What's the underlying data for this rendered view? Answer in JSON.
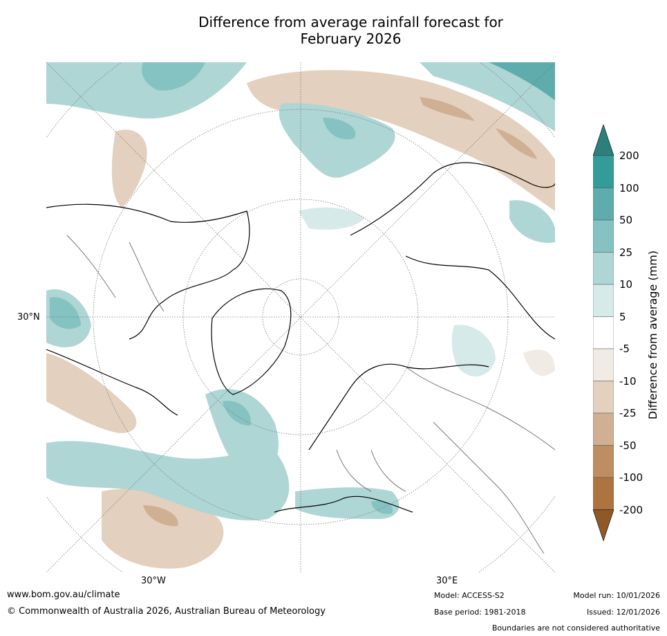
{
  "title": {
    "line1": "Difference from average rainfall forecast for",
    "line2": "February 2026"
  },
  "map": {
    "projection": "north polar stereographic",
    "lat_label": "30°N",
    "lon_labels": {
      "west": "30°W",
      "east": "30°E"
    }
  },
  "colorbar": {
    "title": "Difference from average (mm)",
    "ticks": [
      "200",
      "100",
      "50",
      "25",
      "10",
      "5",
      "-5",
      "-10",
      "-25",
      "-50",
      "-100",
      "-200"
    ],
    "colors": {
      "gt200": "#2d7f7b",
      "b100_200": "#339c98",
      "b50_100": "#5eacab",
      "b25_50": "#84c3c1",
      "b10_25": "#aed6d5",
      "b5_10": "#d6eae9",
      "neutral": "#ffffff",
      "bm10_m5": "#f1ebe5",
      "bm25_m10": "#e3d0be",
      "bm50_m25": "#d0b093",
      "bm100_m50": "#bd8e61",
      "bm200_m100": "#ae743f",
      "lt_m200": "#8f5827"
    }
  },
  "footer": {
    "website": "www.bom.gov.au/climate",
    "copyright": "© Commonwealth of Australia 2026, Australian Bureau of Meteorology",
    "model": "Model: ACCESS-S2",
    "base_period": "Base period: 1981-2018",
    "model_run": "Model run: 10/01/2026",
    "issued": "Issued: 12/01/2026",
    "disclaimer": "Boundaries are not considered authoritative"
  }
}
